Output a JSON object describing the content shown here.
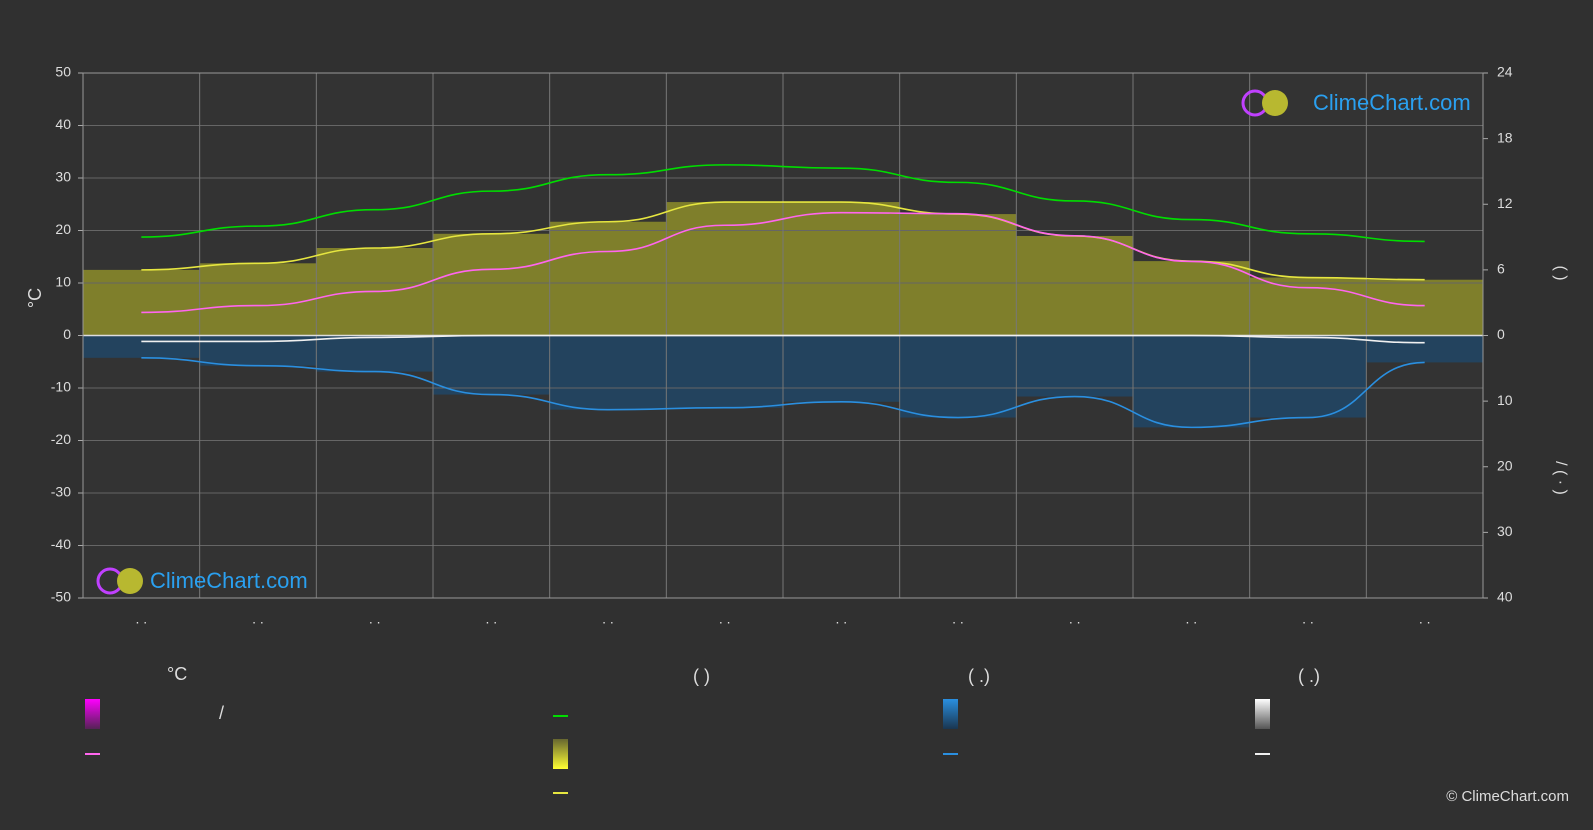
{
  "chart_data": {
    "type": "line",
    "categories": [
      ". .",
      ". .",
      ". .",
      ". .",
      ". .",
      ". .",
      ". .",
      ". .",
      ". .",
      ". .",
      ". .",
      ". ."
    ],
    "ylabel": "°C",
    "y2label": "(          )",
    "y3label": "/      (  ·  )",
    "ylim": [
      -50,
      50
    ],
    "yticks": [
      -50,
      -40,
      -30,
      -20,
      -10,
      0,
      10,
      20,
      30,
      40,
      50
    ],
    "y2lim": [
      0,
      24
    ],
    "y2ticks": [
      0,
      6,
      12,
      18,
      24
    ],
    "y3lim": [
      0,
      40
    ],
    "y3ticks": [
      10,
      20,
      30,
      40
    ],
    "grid": true,
    "series": [
      {
        "color": "#00dd00",
        "axis": "y2",
        "values": [
          9.0,
          10.0,
          11.5,
          13.2,
          14.7,
          15.6,
          15.3,
          14.0,
          12.3,
          10.6,
          9.3,
          8.6
        ]
      },
      {
        "color": "#e6e640",
        "axis": "y2",
        "fill": "#9a9a2a",
        "values": [
          6.0,
          6.6,
          8.0,
          9.3,
          10.4,
          12.2,
          12.2,
          11.1,
          9.1,
          6.8,
          5.3,
          5.1
        ]
      },
      {
        "color": "#ff66ee",
        "axis": "y",
        "values": [
          4.4,
          5.7,
          8.4,
          12.6,
          16.0,
          21.0,
          23.4,
          23.2,
          19.0,
          14.1,
          9.1,
          5.7
        ]
      },
      {
        "color": "#2a8fe0",
        "axis": "y3",
        "fill": "#1f4a6e",
        "values": [
          3.4,
          4.6,
          5.5,
          9.0,
          11.3,
          11.0,
          10.1,
          12.5,
          9.3,
          14.0,
          12.5,
          4.1
        ]
      },
      {
        "color": "#f0f0f0",
        "axis": "y3",
        "values": [
          0.9,
          0.9,
          0.3,
          0,
          0,
          0,
          0,
          0,
          0,
          0,
          0.3,
          1.1
        ]
      }
    ],
    "legend": {
      "headers": [
        "°C",
        "(          )",
        "(    .)",
        "(    .)"
      ],
      "slash": "/"
    },
    "watermark": "ClimeChart.com",
    "copyright": "© ClimeChart.com"
  }
}
